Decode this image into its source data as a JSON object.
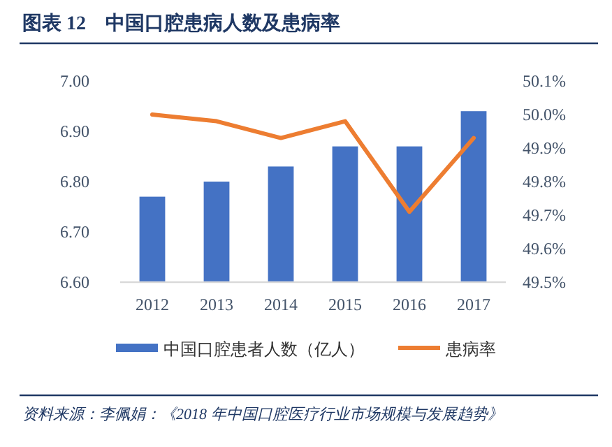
{
  "chart_data": {
    "type": "bar",
    "title": "图表 12　中国口腔患病人数及患病率",
    "categories": [
      "2012",
      "2013",
      "2014",
      "2015",
      "2016",
      "2017"
    ],
    "series": [
      {
        "name": "中国口腔患者人数（亿人）",
        "color": "#4472c4",
        "values": [
          6.77,
          6.8,
          6.83,
          6.87,
          6.87,
          6.94
        ]
      },
      {
        "type": "line",
        "name": "患病率",
        "color": "#ed7d31",
        "axis": "y2",
        "values": [
          50.0,
          49.98,
          49.93,
          49.98,
          49.71,
          49.93
        ]
      }
    ],
    "ylim": [
      6.6,
      7.0
    ],
    "yticks": [
      {
        "value": 6.6,
        "label": "6.60"
      },
      {
        "value": 6.7,
        "label": "6.70"
      },
      {
        "value": 6.8,
        "label": "6.80"
      },
      {
        "value": 6.9,
        "label": "6.90"
      },
      {
        "value": 7.0,
        "label": "7.00"
      }
    ],
    "y2lim": [
      49.5,
      50.1
    ],
    "y2ticks": [
      {
        "value": 49.5,
        "label": "49.5%"
      },
      {
        "value": 49.6,
        "label": "49.6%"
      },
      {
        "value": 49.7,
        "label": "49.7%"
      },
      {
        "value": 49.8,
        "label": "49.8%"
      },
      {
        "value": 49.9,
        "label": "49.9%"
      },
      {
        "value": 50.0,
        "label": "50.0%"
      },
      {
        "value": 50.1,
        "label": "50.1%"
      }
    ],
    "legend": "bottom",
    "annotations": [
      "资料来源：李佩娟：《2018 年中国口腔医疗行业市场规模与发展趋势》"
    ]
  }
}
